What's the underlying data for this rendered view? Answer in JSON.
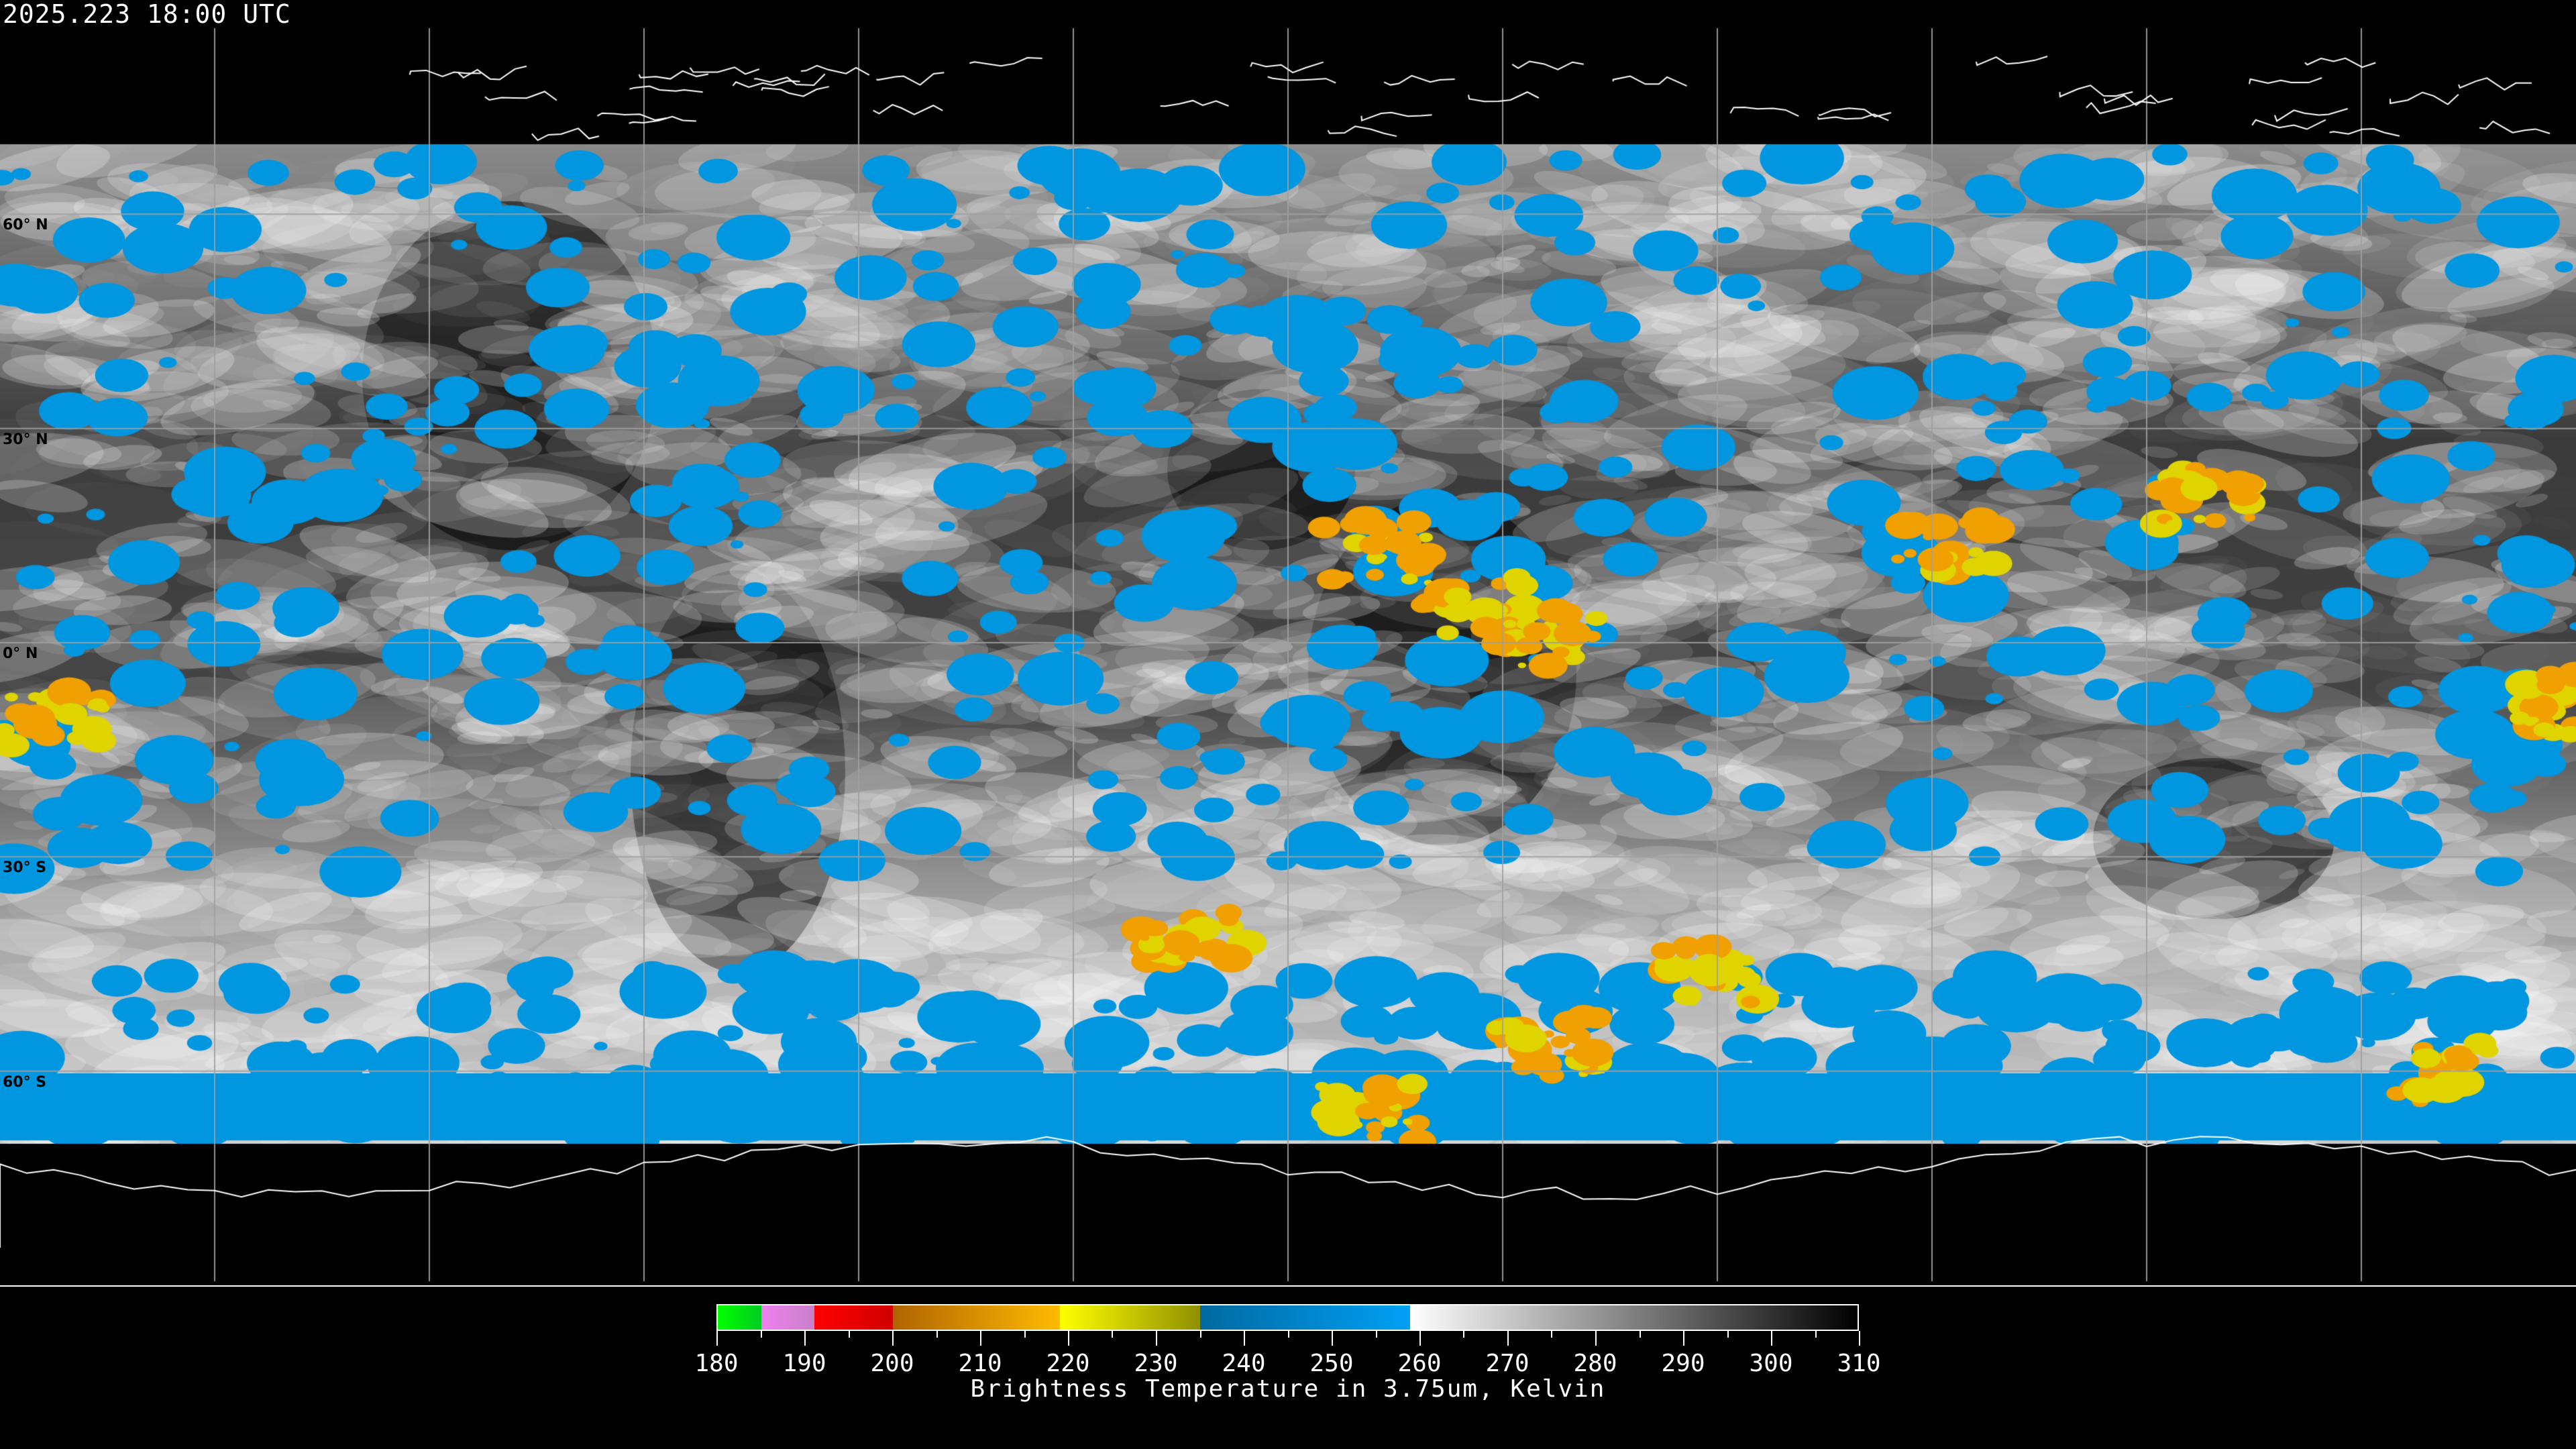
{
  "header": {
    "timestamp": "2025.223 18:00 UTC"
  },
  "map": {
    "projection": "equirectangular",
    "graticule_step_deg": 30,
    "lat_labels": [
      "60° N",
      "30° N",
      "0° N",
      "30° S",
      "60° S"
    ],
    "lat_values": [
      60,
      30,
      0,
      -30,
      -60
    ]
  },
  "colorbar": {
    "title": "Brightness Temperature in 3.75um, Kelvin",
    "min": 180,
    "max": 310,
    "tick_labels": [
      "180",
      "190",
      "200",
      "210",
      "220",
      "230",
      "240",
      "250",
      "260",
      "270",
      "280",
      "290",
      "300",
      "310"
    ],
    "segments": [
      {
        "from": 180,
        "to": 185,
        "c1": "#00ff00",
        "c2": "#00cc22"
      },
      {
        "from": 185,
        "to": 191,
        "c1": "#f080f0",
        "c2": "#c880c8"
      },
      {
        "from": 191,
        "to": 200,
        "c1": "#ff0000",
        "c2": "#d00000"
      },
      {
        "from": 200,
        "to": 219,
        "c1": "#b06400",
        "c2": "#ffbb00"
      },
      {
        "from": 219,
        "to": 235,
        "c1": "#ffff00",
        "c2": "#909000"
      },
      {
        "from": 235,
        "to": 259,
        "c1": "#006aa0",
        "c2": "#00a0f5"
      },
      {
        "from": 259,
        "to": 310,
        "c1": "#ffffff",
        "c2": "#000000"
      }
    ]
  }
}
